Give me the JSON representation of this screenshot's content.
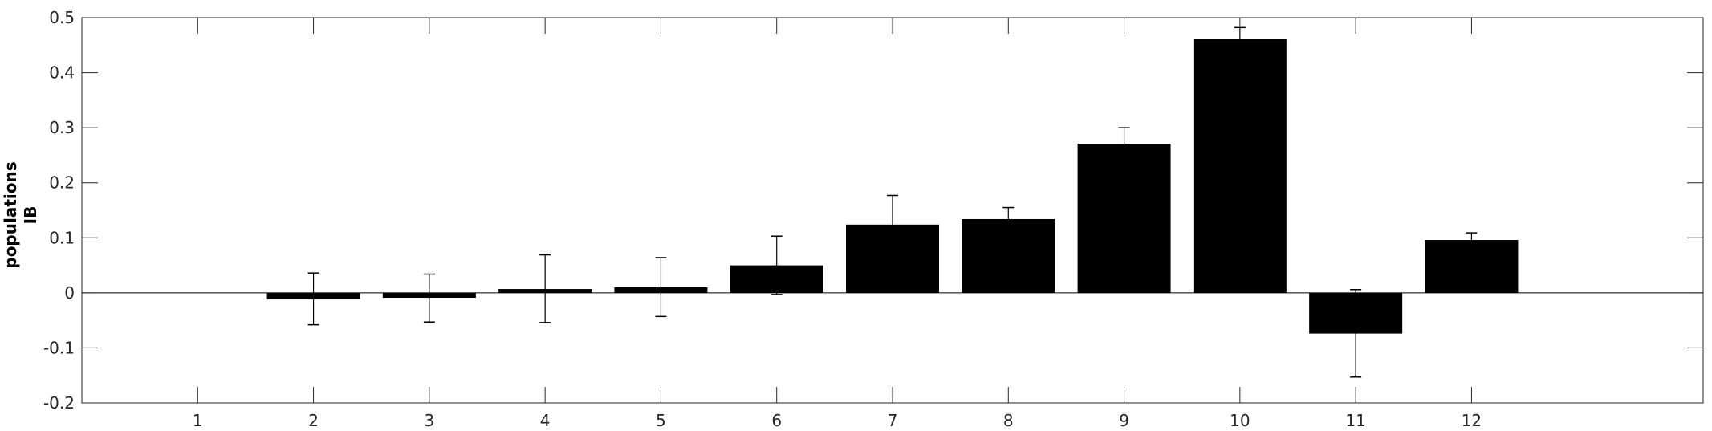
{
  "chart_data": {
    "type": "bar",
    "title": "",
    "xlabel": "",
    "ylabel_lines": [
      "populations",
      "IB"
    ],
    "ylim": [
      -0.2,
      0.5
    ],
    "yticks": [
      -0.2,
      -0.1,
      0,
      0.1,
      0.2,
      0.3,
      0.4,
      0.5
    ],
    "ytick_labels": [
      "-0.2",
      "-0.1",
      "0",
      "0.1",
      "0.2",
      "0.3",
      "0.4",
      "0.5"
    ],
    "xlim": [
      0,
      14
    ],
    "categories": [
      "1",
      "2",
      "3",
      "4",
      "5",
      "6",
      "7",
      "8",
      "9",
      "10",
      "11",
      "12"
    ],
    "values": [
      null,
      -0.012,
      -0.009,
      0.007,
      0.01,
      0.05,
      0.124,
      0.134,
      0.271,
      0.462,
      -0.074,
      0.096
    ],
    "error_upper": [
      null,
      0.036,
      0.034,
      0.069,
      0.064,
      0.103,
      0.177,
      0.155,
      0.3,
      0.482,
      0.006,
      0.109
    ],
    "error_lower": [
      null,
      -0.058,
      -0.053,
      -0.054,
      -0.043,
      -0.003,
      null,
      null,
      null,
      null,
      -0.153,
      null
    ],
    "bar_color": "#000000",
    "grid": false,
    "legend": "none"
  }
}
